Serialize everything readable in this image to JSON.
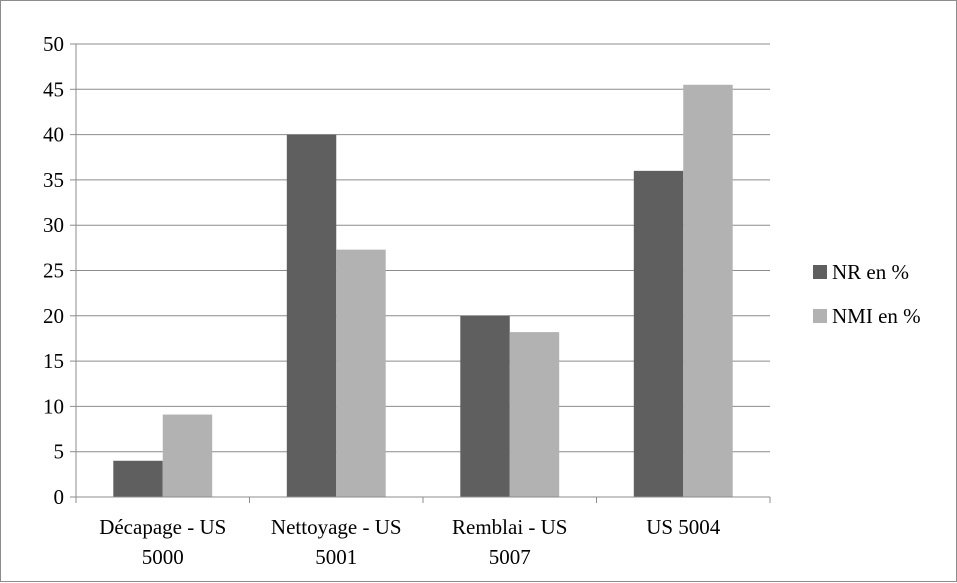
{
  "chart_data": {
    "type": "bar",
    "categories": [
      [
        "Décapage - US",
        "5000"
      ],
      [
        "Nettoyage - US",
        "5001"
      ],
      [
        "Remblai - US",
        "5007"
      ],
      [
        "US 5004"
      ]
    ],
    "series": [
      {
        "name": "NR en %",
        "color": "#5f5f5f",
        "values": [
          4,
          40,
          20,
          36
        ]
      },
      {
        "name": "NMI en %",
        "color": "#b2b2b2",
        "values": [
          9.1,
          27.3,
          18.2,
          45.5
        ]
      }
    ],
    "ylim": [
      0,
      50
    ],
    "yticks": [
      0,
      5,
      10,
      15,
      20,
      25,
      30,
      35,
      40,
      45,
      50
    ],
    "grid": true,
    "legend_position": "right",
    "title": "",
    "xlabel": "",
    "ylabel": ""
  }
}
